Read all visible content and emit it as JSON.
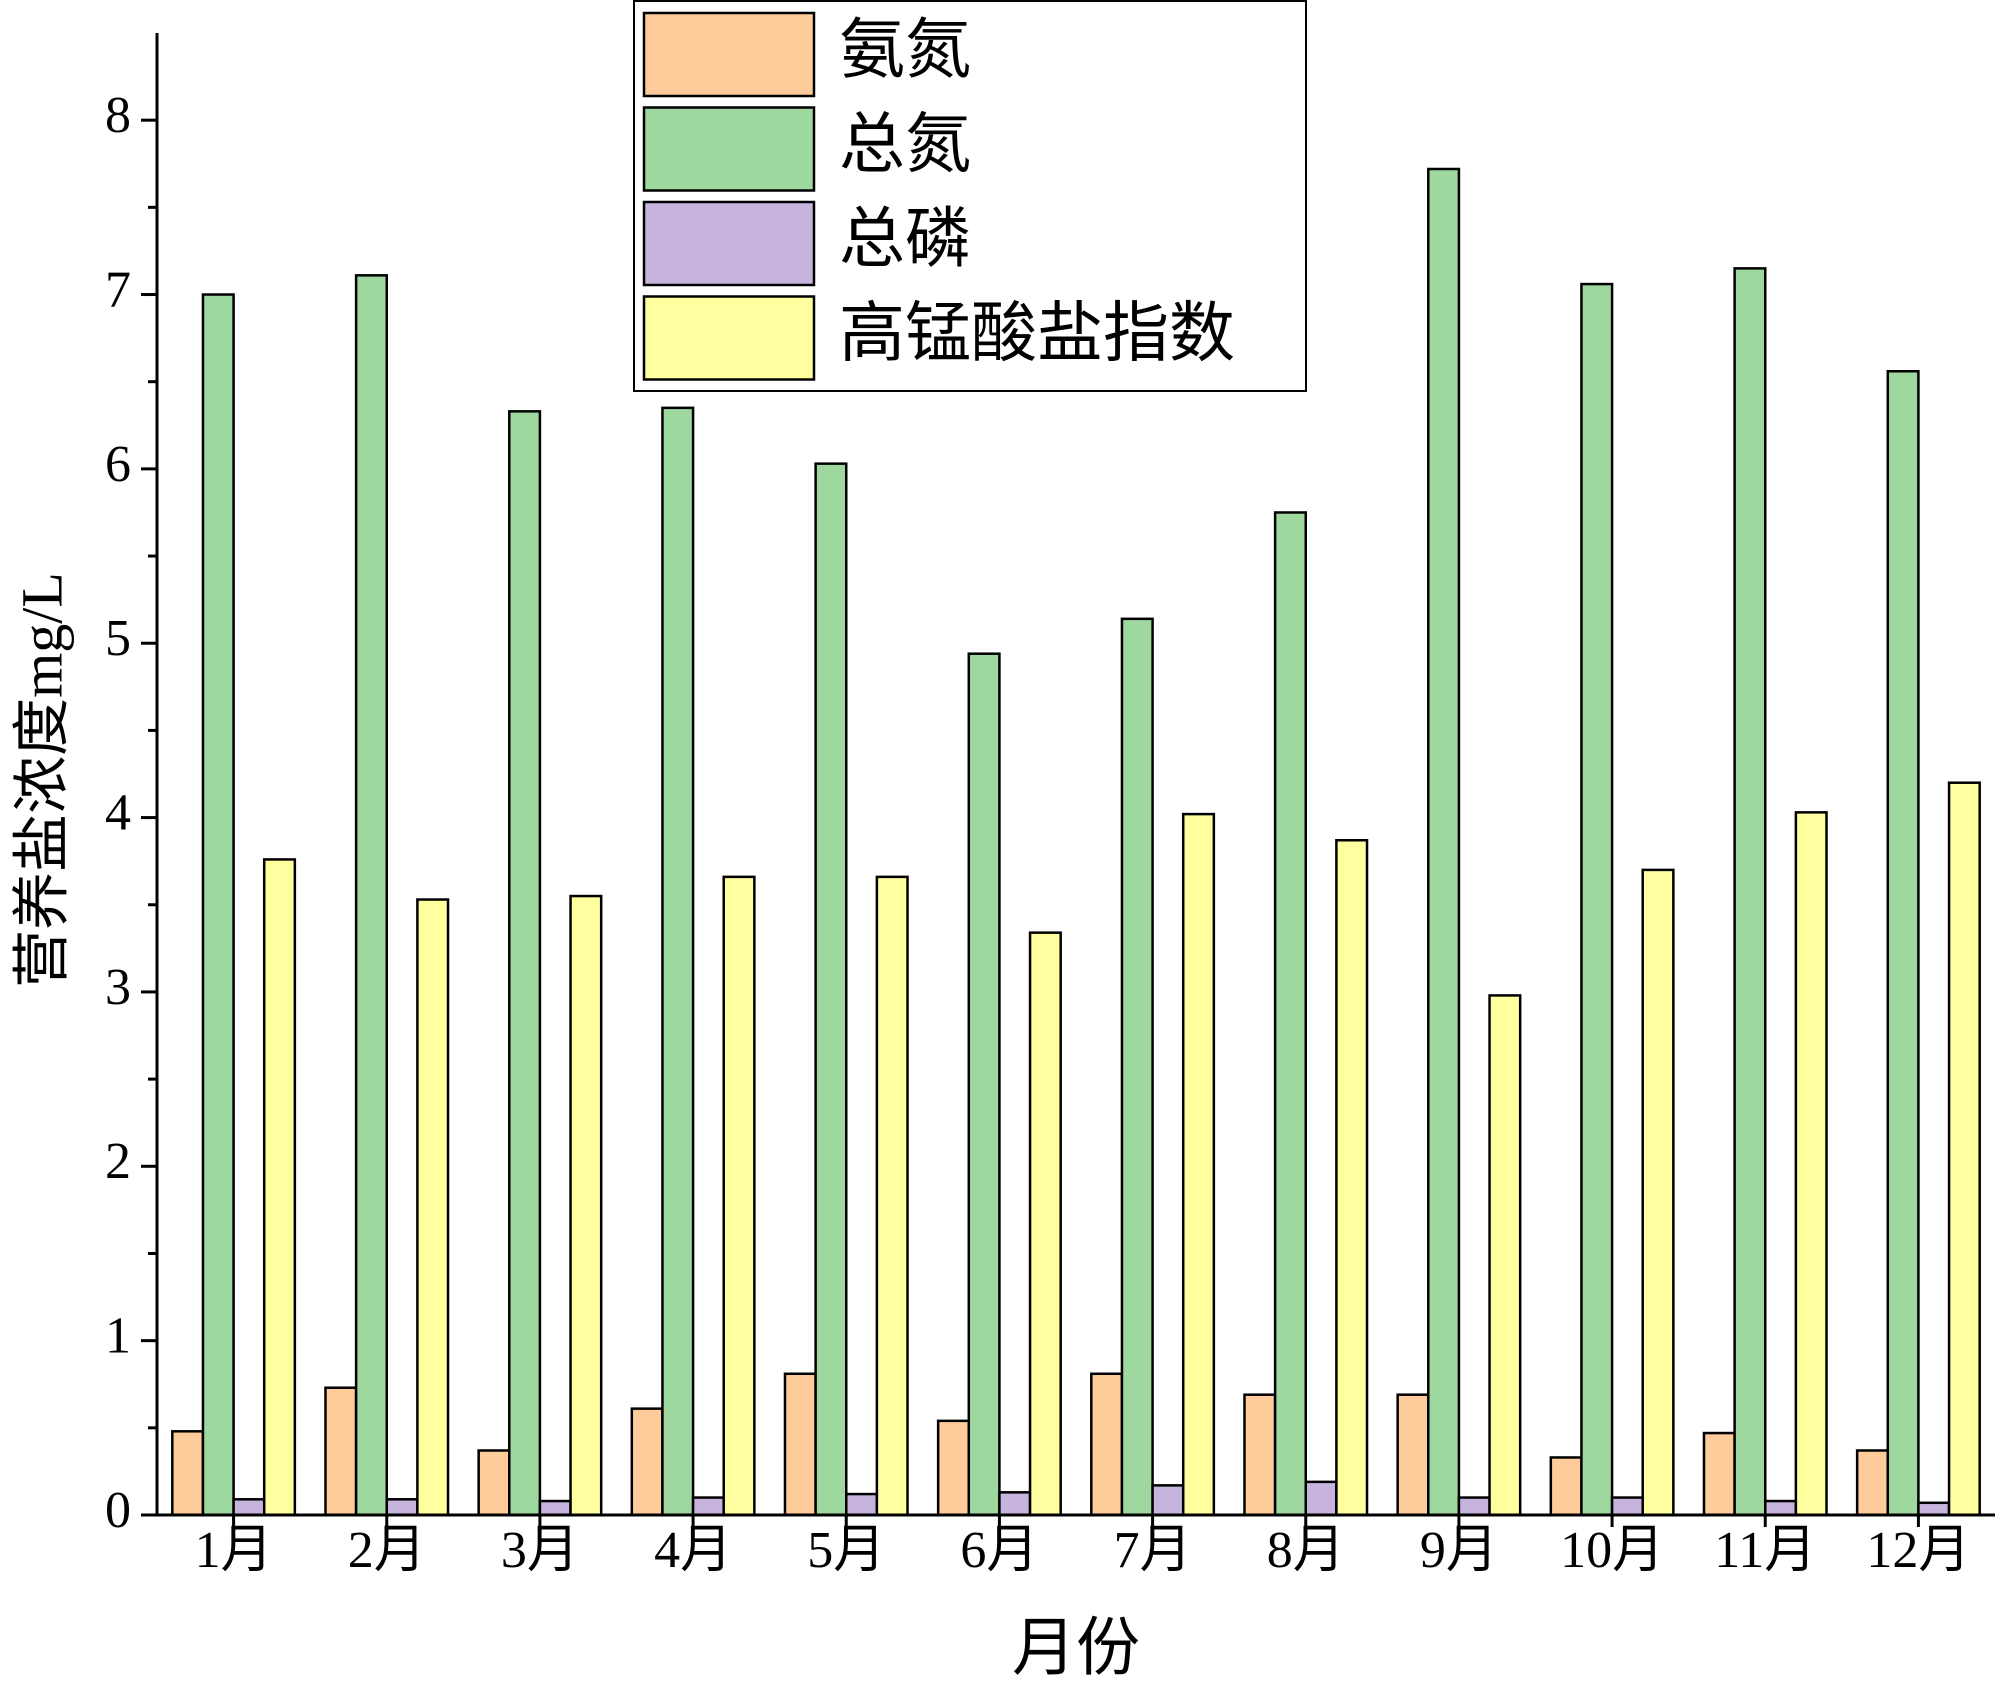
{
  "chart_data": {
    "type": "bar",
    "ylabel": "营养盐浓度mg/L",
    "xlabel": "月份",
    "categories": [
      "1月",
      "2月",
      "3月",
      "4月",
      "5月",
      "6月",
      "7月",
      "8月",
      "9月",
      "10月",
      "11月",
      "12月"
    ],
    "series": [
      {
        "name": "氨氮",
        "color": "#fdcc9a",
        "values": [
          0.48,
          0.73,
          0.37,
          0.61,
          0.81,
          0.54,
          0.81,
          0.69,
          0.69,
          0.33,
          0.47,
          0.37
        ]
      },
      {
        "name": "总氮",
        "color": "#9ed89e",
        "values": [
          7.0,
          7.11,
          6.33,
          6.35,
          6.03,
          4.94,
          5.14,
          5.75,
          7.72,
          7.06,
          7.15,
          6.56
        ]
      },
      {
        "name": "总磷",
        "color": "#c6b4dc",
        "values": [
          0.09,
          0.09,
          0.08,
          0.1,
          0.12,
          0.13,
          0.17,
          0.19,
          0.1,
          0.1,
          0.08,
          0.07
        ]
      },
      {
        "name": "高锰酸盐指数",
        "color": "#ffff9f",
        "values": [
          3.76,
          3.53,
          3.55,
          3.66,
          3.66,
          3.34,
          4.02,
          3.87,
          2.98,
          3.7,
          4.03,
          4.2
        ]
      }
    ],
    "ylim": [
      0,
      8.5
    ],
    "yticks": [
      0,
      1,
      2,
      3,
      4,
      5,
      6,
      7,
      8
    ],
    "legend": "top-center"
  }
}
